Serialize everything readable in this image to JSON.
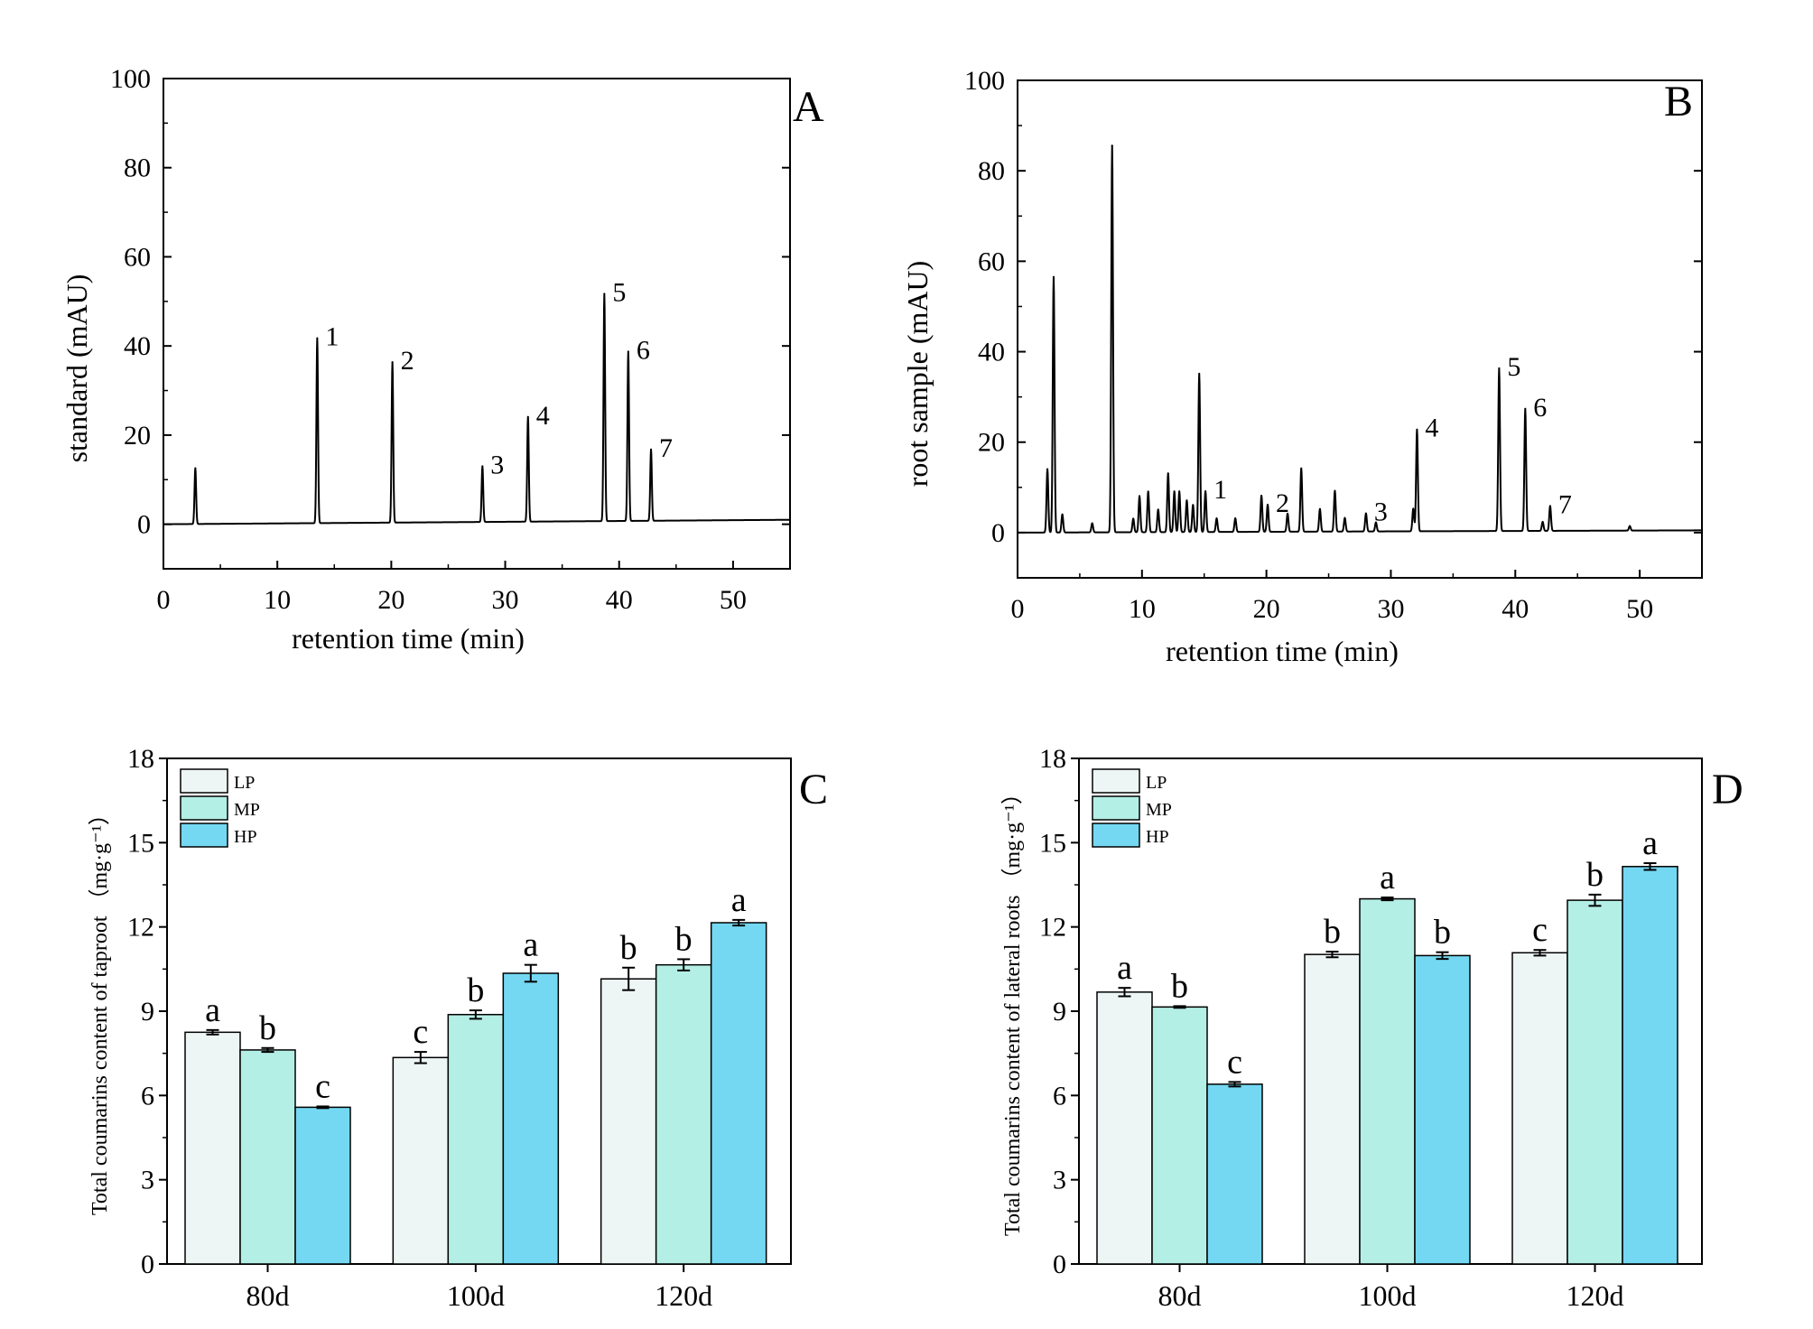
{
  "chart_data": [
    {
      "panel": "A",
      "type": "line",
      "xlabel": "retention time (min)",
      "ylabel": "standard (mAU)",
      "xlim": [
        0,
        55
      ],
      "ylim": [
        -10,
        100
      ],
      "xticks": [
        0,
        10,
        20,
        30,
        40,
        50
      ],
      "yticks": [
        0,
        20,
        40,
        60,
        80,
        100
      ],
      "grid": false,
      "baseline": [
        [
          0,
          0
        ],
        [
          55,
          1
        ]
      ],
      "peaks": [
        {
          "rt": 2.8,
          "height": 12.5,
          "label": ""
        },
        {
          "rt": 13.5,
          "height": 41.5,
          "label": "1"
        },
        {
          "rt": 20.1,
          "height": 36,
          "label": "2"
        },
        {
          "rt": 28.0,
          "height": 12.5,
          "label": "3"
        },
        {
          "rt": 32.0,
          "height": 23.5,
          "label": "4"
        },
        {
          "rt": 38.7,
          "height": 51,
          "label": "5"
        },
        {
          "rt": 40.8,
          "height": 38,
          "label": "6"
        },
        {
          "rt": 42.8,
          "height": 16,
          "label": "7"
        }
      ]
    },
    {
      "panel": "B",
      "type": "line",
      "xlabel": "retention time (min)",
      "ylabel": "root sample (mAU)",
      "xlim": [
        0,
        55
      ],
      "ylim": [
        -10,
        100
      ],
      "xticks": [
        0,
        10,
        20,
        30,
        40,
        50
      ],
      "yticks": [
        0,
        20,
        40,
        60,
        80,
        100
      ],
      "grid": false,
      "baseline": [
        [
          0,
          0
        ],
        [
          55,
          0.5
        ]
      ],
      "peaks": [
        {
          "rt": 2.4,
          "height": 14,
          "label": ""
        },
        {
          "rt": 2.9,
          "height": 56.5,
          "label": ""
        },
        {
          "rt": 3.6,
          "height": 4,
          "label": ""
        },
        {
          "rt": 6.0,
          "height": 2,
          "label": ""
        },
        {
          "rt": 7.6,
          "height": 85.5,
          "label": ""
        },
        {
          "rt": 9.3,
          "height": 3,
          "label": ""
        },
        {
          "rt": 9.8,
          "height": 8,
          "label": ""
        },
        {
          "rt": 10.5,
          "height": 9,
          "label": ""
        },
        {
          "rt": 11.3,
          "height": 5,
          "label": ""
        },
        {
          "rt": 12.1,
          "height": 13,
          "label": ""
        },
        {
          "rt": 12.6,
          "height": 9,
          "label": ""
        },
        {
          "rt": 13.0,
          "height": 9,
          "label": ""
        },
        {
          "rt": 13.6,
          "height": 7,
          "label": ""
        },
        {
          "rt": 14.1,
          "height": 6,
          "label": ""
        },
        {
          "rt": 14.6,
          "height": 35,
          "label": ""
        },
        {
          "rt": 15.1,
          "height": 9,
          "label": "1"
        },
        {
          "rt": 16.0,
          "height": 3,
          "label": ""
        },
        {
          "rt": 17.5,
          "height": 3,
          "label": ""
        },
        {
          "rt": 19.6,
          "height": 8,
          "label": ""
        },
        {
          "rt": 20.1,
          "height": 6,
          "label": "2"
        },
        {
          "rt": 21.7,
          "height": 4,
          "label": ""
        },
        {
          "rt": 22.8,
          "height": 14,
          "label": ""
        },
        {
          "rt": 24.3,
          "height": 5,
          "label": ""
        },
        {
          "rt": 25.5,
          "height": 9,
          "label": ""
        },
        {
          "rt": 26.3,
          "height": 3,
          "label": ""
        },
        {
          "rt": 28.0,
          "height": 4,
          "label": "3"
        },
        {
          "rt": 28.8,
          "height": 2,
          "label": ""
        },
        {
          "rt": 31.8,
          "height": 5,
          "label": ""
        },
        {
          "rt": 32.1,
          "height": 22.5,
          "label": "4"
        },
        {
          "rt": 38.7,
          "height": 36,
          "label": "5"
        },
        {
          "rt": 40.8,
          "height": 27,
          "label": "6"
        },
        {
          "rt": 42.2,
          "height": 2,
          "label": ""
        },
        {
          "rt": 42.8,
          "height": 5.5,
          "label": "7"
        },
        {
          "rt": 49.2,
          "height": 1,
          "label": ""
        }
      ]
    },
    {
      "panel": "C",
      "type": "bar",
      "ylabel": "Total coumarins content of taproot （mg·g⁻¹）",
      "ylim": [
        0,
        18
      ],
      "yticks": [
        0,
        3,
        6,
        9,
        12,
        15,
        18
      ],
      "legend_position": "top-left",
      "categories": [
        "80d",
        "100d",
        "120d"
      ],
      "series": [
        {
          "name": "LP",
          "color": "#eef6f5",
          "values": [
            8.25,
            7.35,
            10.15
          ],
          "errors": [
            0.08,
            0.2,
            0.4
          ],
          "letters": [
            "a",
            "c",
            "b"
          ]
        },
        {
          "name": "MP",
          "color": "#b4efe6",
          "values": [
            7.62,
            8.88,
            10.65
          ],
          "errors": [
            0.07,
            0.15,
            0.2
          ],
          "letters": [
            "b",
            "b",
            "b"
          ]
        },
        {
          "name": "HP",
          "color": "#74d8f2",
          "values": [
            5.58,
            10.35,
            12.15
          ],
          "errors": [
            0.03,
            0.3,
            0.1
          ],
          "letters": [
            "c",
            "a",
            "a"
          ]
        }
      ]
    },
    {
      "panel": "D",
      "type": "bar",
      "ylabel": "Total coumarins content of lateral roots （mg·g⁻¹）",
      "ylim": [
        0,
        18
      ],
      "yticks": [
        0,
        3,
        6,
        9,
        12,
        15,
        18
      ],
      "legend_position": "top-left",
      "categories": [
        "80d",
        "100d",
        "120d"
      ],
      "series": [
        {
          "name": "LP",
          "color": "#eef6f5",
          "values": [
            9.68,
            11.02,
            11.08
          ],
          "errors": [
            0.15,
            0.1,
            0.1
          ],
          "letters": [
            "a",
            "b",
            "c"
          ]
        },
        {
          "name": "MP",
          "color": "#b4efe6",
          "values": [
            9.15,
            13.0,
            12.95
          ],
          "errors": [
            0.03,
            0.05,
            0.2
          ],
          "letters": [
            "b",
            "a",
            "b"
          ]
        },
        {
          "name": "HP",
          "color": "#74d8f2",
          "values": [
            6.4,
            10.98,
            14.15
          ],
          "errors": [
            0.08,
            0.12,
            0.12
          ],
          "letters": [
            "c",
            "b",
            "a"
          ]
        }
      ]
    }
  ]
}
